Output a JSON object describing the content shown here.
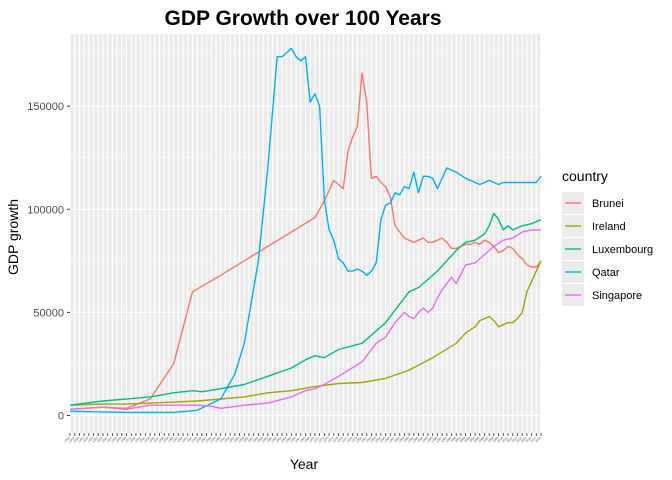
{
  "chart_data": {
    "type": "line",
    "title": "GDP Growth over 100 Years",
    "xlabel": "Year",
    "ylabel": "GDP growth",
    "xlim": [
      1918,
      2018
    ],
    "ylim": [
      -8500,
      185000
    ],
    "y_ticks": [
      0,
      50000,
      100000,
      150000
    ],
    "y_tick_labels": [
      "0",
      "50000",
      "100000",
      "150000"
    ],
    "grid": true,
    "legend": {
      "title": "country",
      "position": "right"
    },
    "series": [
      {
        "name": "Brunei",
        "color": "#F8766D",
        "x": [
          1918,
          1925,
          1930,
          1935,
          1940,
          1944,
          1950,
          1955,
          1960,
          1965,
          1970,
          1972,
          1974,
          1976,
          1977,
          1978,
          1979,
          1980,
          1981,
          1982,
          1983,
          1984,
          1985,
          1986,
          1987,
          1988,
          1989,
          1990,
          1991,
          1992,
          1993,
          1994,
          1995,
          1996,
          1997,
          1998,
          1999,
          2000,
          2001,
          2002,
          2003,
          2004,
          2005,
          2006,
          2007,
          2008,
          2009,
          2010,
          2011,
          2012,
          2013,
          2014,
          2015,
          2016,
          2017,
          2018
        ],
        "y": [
          3000,
          4000,
          3500,
          8000,
          25000,
          60000,
          68000,
          75000,
          82000,
          89000,
          96000,
          104000,
          114000,
          110000,
          128000,
          135000,
          140000,
          166000,
          152000,
          115000,
          116000,
          113000,
          111000,
          106000,
          92000,
          89000,
          86000,
          85000,
          84000,
          85000,
          86000,
          84000,
          84000,
          85000,
          86000,
          84000,
          81000,
          81000,
          82000,
          83000,
          83000,
          84000,
          83000,
          85000,
          84000,
          82000,
          79000,
          80000,
          82000,
          81000,
          78000,
          76000,
          73000,
          72000,
          72000,
          75000
        ]
      },
      {
        "name": "Ireland",
        "color": "#A3A500",
        "x": [
          1918,
          1925,
          1930,
          1935,
          1940,
          1945,
          1950,
          1955,
          1960,
          1965,
          1970,
          1975,
          1980,
          1985,
          1990,
          1995,
          2000,
          2002,
          2004,
          2005,
          2006,
          2007,
          2008,
          2009,
          2010,
          2011,
          2012,
          2013,
          2014,
          2015,
          2016,
          2017,
          2018
        ],
        "y": [
          5000,
          5500,
          5500,
          6000,
          6500,
          7000,
          8000,
          9000,
          11000,
          12000,
          14000,
          15500,
          16000,
          18000,
          22000,
          28000,
          35000,
          40000,
          43000,
          46000,
          47000,
          48000,
          46000,
          43000,
          44000,
          45000,
          45000,
          47000,
          50000,
          60000,
          65000,
          70000,
          75000
        ]
      },
      {
        "name": "Luxembourg",
        "color": "#00BF7D",
        "x": [
          1918,
          1925,
          1930,
          1935,
          1940,
          1944,
          1946,
          1950,
          1955,
          1960,
          1965,
          1968,
          1970,
          1972,
          1975,
          1980,
          1985,
          1988,
          1990,
          1992,
          1994,
          1996,
          1998,
          2000,
          2002,
          2004,
          2006,
          2007,
          2008,
          2009,
          2010,
          2011,
          2012,
          2014,
          2016,
          2018
        ],
        "y": [
          5000,
          7000,
          8000,
          9000,
          11000,
          12000,
          11500,
          13000,
          15000,
          19000,
          23000,
          27000,
          29000,
          28000,
          32000,
          35000,
          45000,
          54000,
          60000,
          62000,
          66000,
          70000,
          75000,
          80000,
          84000,
          85000,
          88000,
          92000,
          98000,
          95000,
          90000,
          92000,
          90000,
          92000,
          93000,
          95000
        ]
      },
      {
        "name": "Qatar",
        "color": "#00B0F6",
        "x": [
          1918,
          1930,
          1940,
          1945,
          1950,
          1953,
          1955,
          1958,
          1960,
          1962,
          1963,
          1964,
          1965,
          1966,
          1967,
          1968,
          1969,
          1970,
          1971,
          1972,
          1973,
          1974,
          1975,
          1976,
          1977,
          1978,
          1979,
          1980,
          1981,
          1982,
          1983,
          1984,
          1985,
          1986,
          1987,
          1988,
          1989,
          1990,
          1991,
          1992,
          1993,
          1994,
          1995,
          1996,
          1997,
          1998,
          2000,
          2002,
          2003,
          2004,
          2005,
          2006,
          2007,
          2008,
          2009,
          2010,
          2012,
          2014,
          2016,
          2017,
          2018
        ],
        "y": [
          2000,
          1500,
          1500,
          2500,
          8000,
          20000,
          35000,
          75000,
          120000,
          174000,
          174000,
          176000,
          178000,
          174000,
          172000,
          174000,
          152000,
          156000,
          150000,
          105000,
          90000,
          85000,
          76000,
          74000,
          70000,
          70000,
          71000,
          70000,
          68000,
          70000,
          74000,
          95000,
          102000,
          103000,
          108000,
          107000,
          111000,
          110000,
          118000,
          108000,
          116000,
          116000,
          115000,
          110000,
          115000,
          120000,
          118000,
          115000,
          114000,
          113000,
          112000,
          113000,
          114000,
          113000,
          112000,
          113000,
          113000,
          113000,
          113000,
          113000,
          116000
        ]
      },
      {
        "name": "Singapore",
        "color": "#E76BF3",
        "x": [
          1918,
          1925,
          1930,
          1935,
          1940,
          1945,
          1948,
          1950,
          1955,
          1960,
          1965,
          1968,
          1970,
          1972,
          1975,
          1980,
          1983,
          1985,
          1987,
          1989,
          1990,
          1991,
          1992,
          1993,
          1994,
          1995,
          1996,
          1997,
          1998,
          1999,
          2000,
          2002,
          2004,
          2006,
          2007,
          2008,
          2010,
          2012,
          2014,
          2016,
          2018
        ],
        "y": [
          3000,
          4000,
          3000,
          5000,
          5000,
          5000,
          4500,
          3500,
          5000,
          6000,
          9000,
          12000,
          13000,
          15000,
          19000,
          26000,
          35000,
          38000,
          45000,
          50000,
          48000,
          47000,
          50000,
          52000,
          50000,
          52000,
          57000,
          61000,
          64000,
          67000,
          64000,
          73000,
          74000,
          78000,
          80000,
          82000,
          85000,
          86000,
          89000,
          90000,
          90000
        ]
      }
    ]
  }
}
